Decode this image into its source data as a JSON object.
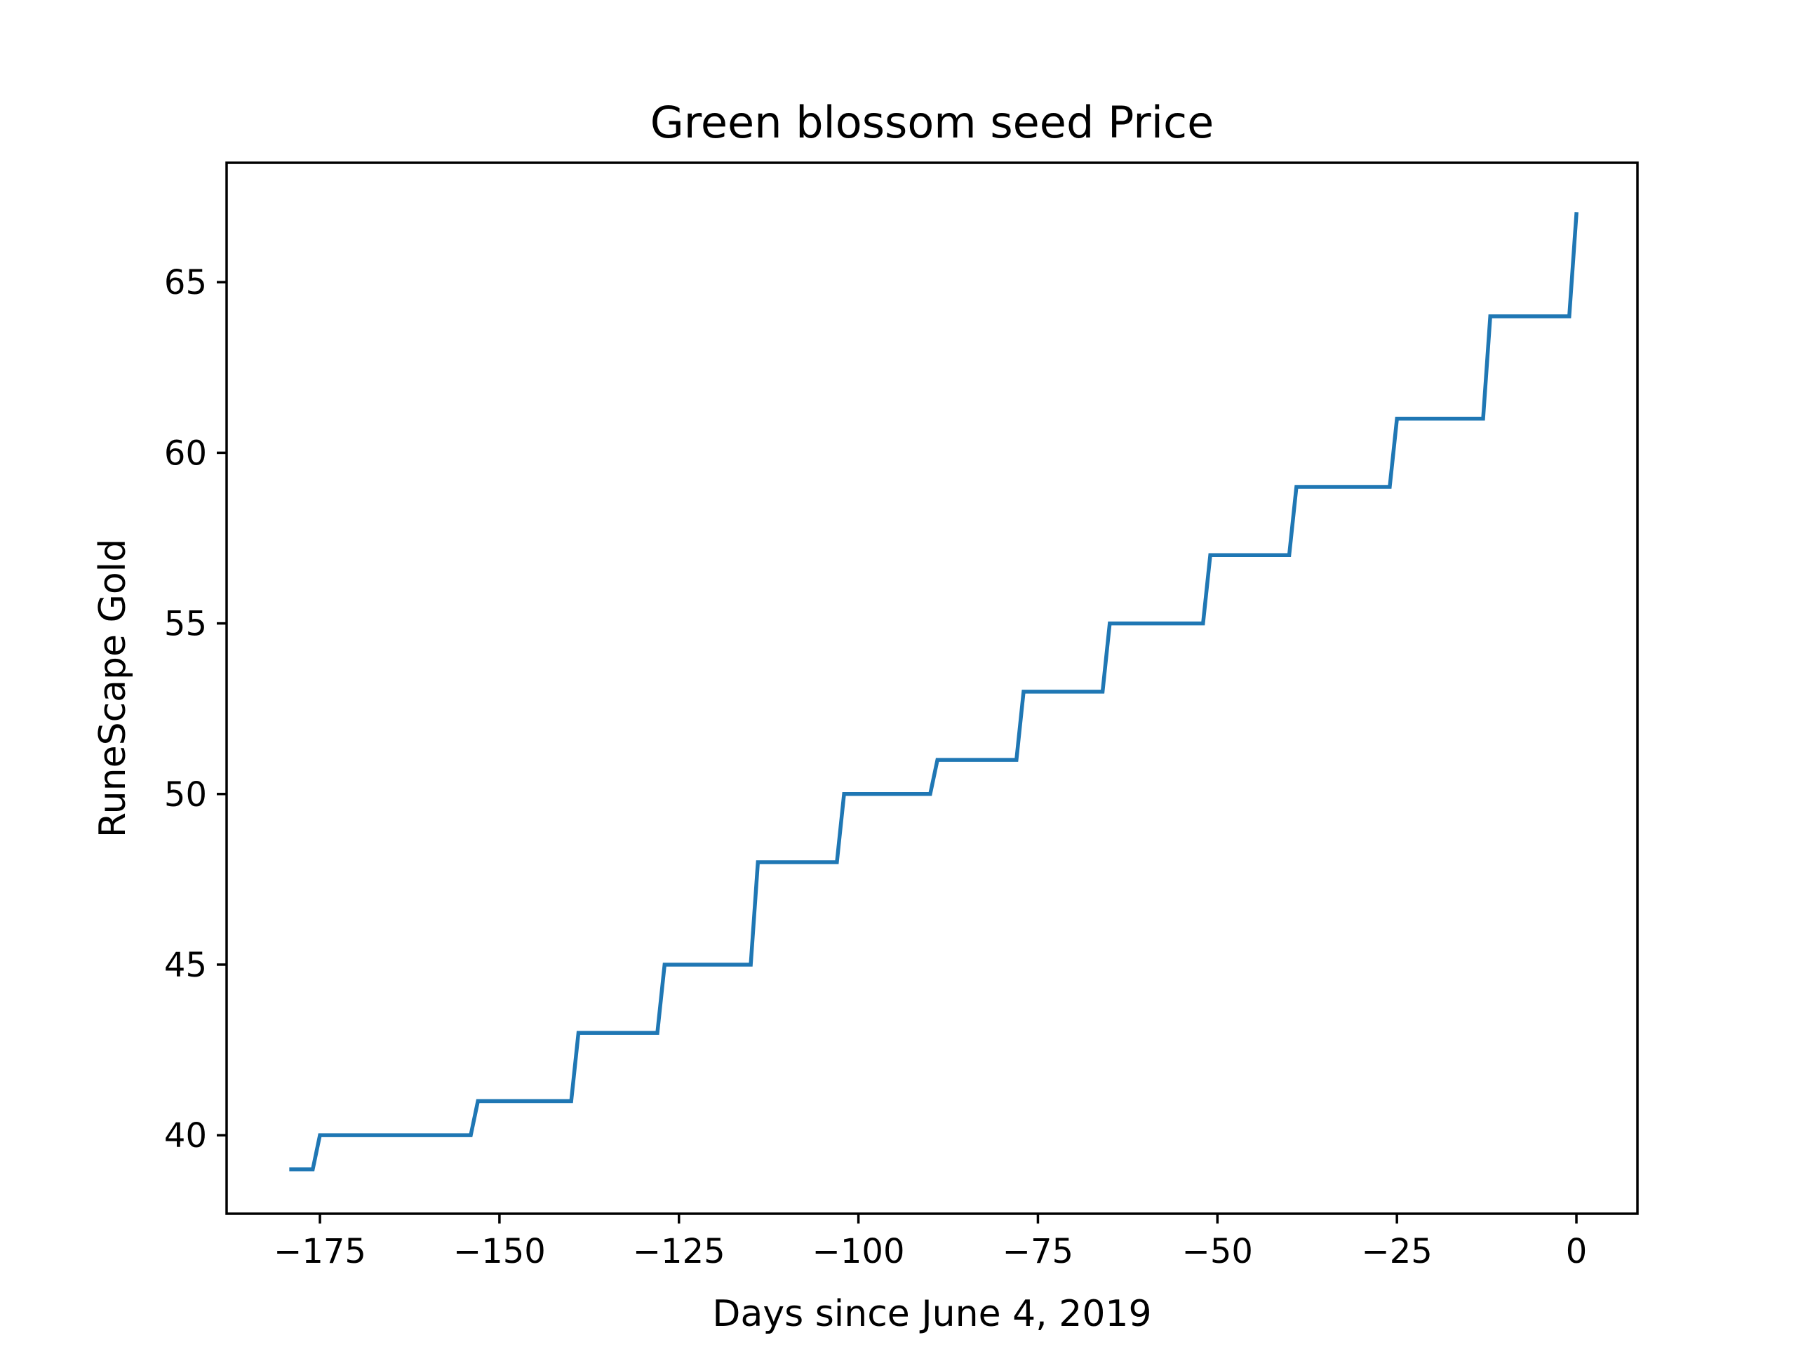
{
  "chart_data": {
    "type": "line",
    "title": "Green blossom seed Price",
    "xlabel": "Days since June 4, 2019",
    "ylabel": "RuneScape Gold",
    "xlim": [
      -188,
      8.5
    ],
    "ylim": [
      37.7,
      68.5
    ],
    "x_ticks": [
      -175,
      -150,
      -125,
      -100,
      -75,
      -50,
      -25,
      0
    ],
    "y_ticks": [
      40,
      45,
      50,
      55,
      60,
      65
    ],
    "grid": false,
    "colors": {
      "series": "#1f77b4",
      "frame": "#000000",
      "background": "#ffffff"
    },
    "series": [
      {
        "x": [
          -179,
          -176,
          -175,
          -154,
          -153,
          -140,
          -139,
          -128,
          -127,
          -115,
          -114,
          -103,
          -102,
          -90,
          -89,
          -78,
          -77,
          -66,
          -65,
          -52,
          -51,
          -40,
          -39,
          -26,
          -25,
          -13,
          -12,
          -1,
          0
        ],
        "values": [
          39,
          39,
          40,
          40,
          41,
          41,
          43,
          43,
          45,
          45,
          48,
          48,
          50,
          50,
          51,
          51,
          53,
          53,
          55,
          55,
          57,
          57,
          59,
          59,
          61,
          61,
          64,
          64,
          67
        ]
      }
    ]
  }
}
